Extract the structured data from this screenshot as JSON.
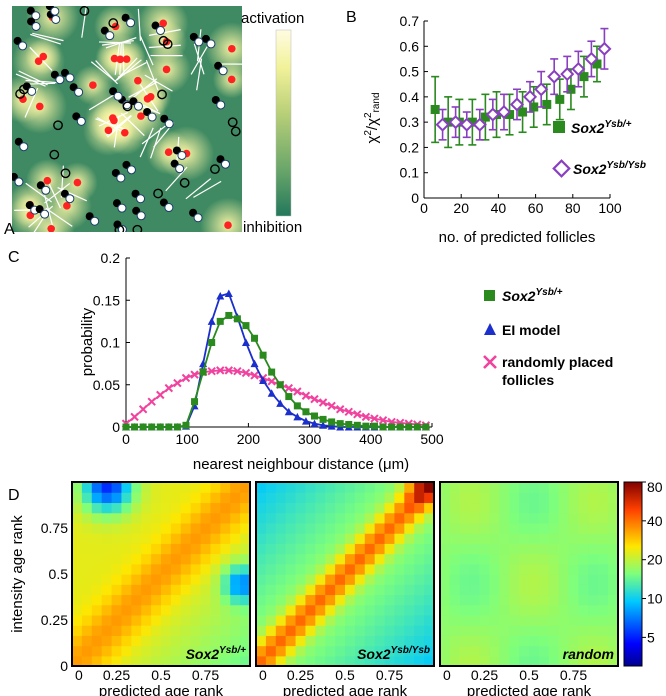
{
  "panels": {
    "A": {
      "label": "A",
      "colorbar_top": "activation",
      "colorbar_bottom": "inhibition",
      "colors": {
        "high": "#fffccc",
        "mid": "#7fb06a",
        "low": "#2c8064",
        "edge": "#ffffff",
        "red_dot": "#ff2222",
        "black_dot": "#000000"
      }
    },
    "B": {
      "label": "B"
    },
    "C": {
      "label": "C"
    },
    "D": {
      "label": "D",
      "xlabel": "predicted age rank",
      "ylabel": "intensity age rank",
      "xticks": [
        "0",
        "0.25",
        "0.5",
        "0.75"
      ],
      "yticks": [
        "0",
        "0.25",
        "0.5",
        "0.75"
      ],
      "maps": [
        {
          "tag_base": "Sox2",
          "tag_sup": "Ysb/+"
        },
        {
          "tag_base": "Sox2",
          "tag_sup": "Ysb/Ysb"
        },
        {
          "tag_base": "random",
          "tag_sup": ""
        }
      ],
      "colorbar_ticks": [
        "80",
        "40",
        "20",
        "10",
        "5"
      ]
    }
  },
  "chart_data": [
    {
      "panel": "B",
      "type": "scatter",
      "ylabel_base": "χ",
      "ylabel_sup": "2",
      "ylabel_mid": "/χ",
      "ylabel_sup2": "2",
      "ylabel_sub2": "rand",
      "xlabel": "no. of predicted follicles",
      "xlim": [
        0,
        100
      ],
      "ylim": [
        0,
        0.7
      ],
      "xticks": [
        0,
        20,
        40,
        60,
        80,
        100
      ],
      "yticks": [
        0,
        0.1,
        0.2,
        0.3,
        0.4,
        0.5,
        0.6,
        0.7
      ],
      "series": [
        {
          "name_base": "Sox2",
          "name_sup": "Ysb/+",
          "color": "#2a8a1e",
          "marker": "square",
          "x": [
            6,
            13,
            19,
            26,
            33,
            39,
            46,
            53,
            59,
            66,
            73,
            79,
            86,
            93
          ],
          "y": [
            0.35,
            0.3,
            0.3,
            0.3,
            0.32,
            0.33,
            0.33,
            0.34,
            0.36,
            0.37,
            0.39,
            0.43,
            0.48,
            0.53
          ],
          "err": [
            0.13,
            0.1,
            0.09,
            0.09,
            0.09,
            0.09,
            0.08,
            0.08,
            0.08,
            0.08,
            0.08,
            0.08,
            0.08,
            0.07
          ]
        },
        {
          "name_base": "Sox2",
          "name_sup": "Ysb/Ysb",
          "color": "#8a3fc0",
          "marker": "diamond",
          "x": [
            10,
            17,
            23,
            30,
            37,
            43,
            50,
            57,
            63,
            70,
            77,
            83,
            90,
            97
          ],
          "y": [
            0.29,
            0.3,
            0.29,
            0.29,
            0.33,
            0.34,
            0.37,
            0.4,
            0.43,
            0.48,
            0.49,
            0.51,
            0.55,
            0.59
          ],
          "err": [
            0.06,
            0.06,
            0.05,
            0.06,
            0.06,
            0.07,
            0.06,
            0.06,
            0.07,
            0.07,
            0.07,
            0.07,
            0.07,
            0.08
          ]
        }
      ]
    },
    {
      "panel": "C",
      "type": "line",
      "ylabel": "probability",
      "xlabel": "nearest neighbour distance (μm)",
      "xlim": [
        0,
        500
      ],
      "ylim": [
        0,
        0.2
      ],
      "xticks": [
        0,
        100,
        200,
        300,
        400,
        500
      ],
      "yticks": [
        0,
        0.05,
        0.1,
        0.15,
        0.2
      ],
      "ytick_labels": [
        "0",
        "0.05",
        "0.1",
        "0.15",
        "0.2"
      ],
      "x": [
        0,
        14,
        28,
        42,
        56,
        70,
        84,
        98,
        112,
        126,
        140,
        154,
        168,
        182,
        196,
        210,
        224,
        238,
        252,
        266,
        280,
        294,
        308,
        322,
        336,
        350,
        364,
        378,
        392,
        406,
        420,
        434,
        448,
        462,
        476,
        490
      ],
      "series": [
        {
          "name_base": "Sox2",
          "name_sup": "Ysb/+",
          "color": "#2a8a1e",
          "marker": "square",
          "y": [
            0,
            0,
            0,
            0,
            0,
            0,
            0,
            0.002,
            0.03,
            0.065,
            0.1,
            0.125,
            0.132,
            0.128,
            0.12,
            0.105,
            0.085,
            0.065,
            0.05,
            0.036,
            0.025,
            0.018,
            0.013,
            0.009,
            0.006,
            0.004,
            0.003,
            0.002,
            0.001,
            0.001,
            0,
            0,
            0,
            0,
            0,
            0
          ]
        },
        {
          "name": "EI model",
          "color": "#1b2fcc",
          "marker": "triangle",
          "y": [
            0,
            0,
            0,
            0,
            0,
            0,
            0,
            0.001,
            0.025,
            0.075,
            0.125,
            0.155,
            0.158,
            0.13,
            0.1,
            0.075,
            0.055,
            0.04,
            0.028,
            0.018,
            0.012,
            0.007,
            0.004,
            0.002,
            0.001,
            0,
            0,
            0,
            0,
            0,
            0,
            0,
            0,
            0,
            0,
            0
          ]
        },
        {
          "name": "randomly placed follicles",
          "color": "#f0429e",
          "marker": "x",
          "y": [
            0.004,
            0.012,
            0.021,
            0.03,
            0.038,
            0.046,
            0.052,
            0.058,
            0.062,
            0.065,
            0.066,
            0.067,
            0.067,
            0.066,
            0.064,
            0.061,
            0.058,
            0.054,
            0.05,
            0.046,
            0.042,
            0.037,
            0.033,
            0.029,
            0.025,
            0.021,
            0.018,
            0.015,
            0.012,
            0.01,
            0.008,
            0.006,
            0.005,
            0.004,
            0.003,
            0.002
          ]
        }
      ]
    },
    {
      "panel": "D",
      "type": "heatmap",
      "color_scale": "log",
      "clim": [
        3,
        80
      ],
      "colorbar_ticks": [
        80,
        40,
        20,
        10,
        5
      ]
    }
  ]
}
